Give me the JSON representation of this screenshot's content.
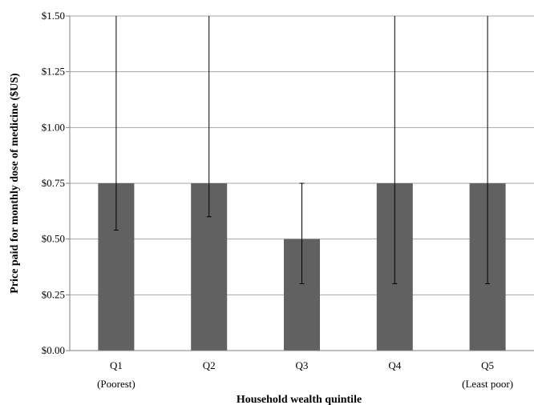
{
  "chart_data": {
    "type": "bar",
    "categories": [
      "Q1",
      "Q2",
      "Q3",
      "Q4",
      "Q5"
    ],
    "category_sublabels": [
      "(Poorest)",
      "",
      "",
      "",
      "(Least poor)"
    ],
    "values": [
      0.75,
      0.75,
      0.5,
      0.75,
      0.75
    ],
    "error_low": [
      0.54,
      0.6,
      0.3,
      0.3,
      0.3
    ],
    "error_high": [
      1.5,
      1.5,
      0.75,
      1.5,
      1.5
    ],
    "xlabel": "Household wealth quintile",
    "ylabel": "Price paid for monthly dose of medicine ($US)",
    "ylim": [
      0,
      1.5
    ],
    "yticks": [
      0,
      0.25,
      0.5,
      0.75,
      1.0,
      1.25,
      1.5
    ],
    "ytick_labels": [
      "$0.00",
      "$0.25",
      "$0.50",
      "$0.75",
      "$1.00",
      "$1.25",
      "$1.50"
    ],
    "grid": true,
    "colors": {
      "bar": "#616161",
      "grid": "#a6a6a6",
      "axis": "#7f7f7f",
      "error_bar": "#000000"
    }
  }
}
